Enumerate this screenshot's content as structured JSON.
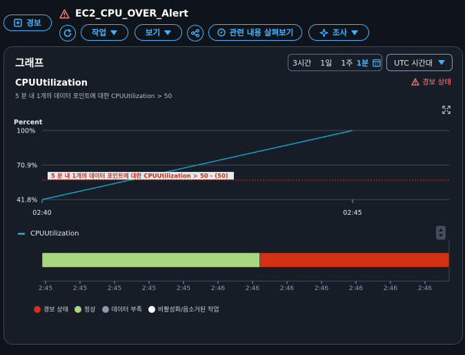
{
  "header": {
    "alarm_button": "경보",
    "alarm_name": "EC2_CPU_OVER_Alert",
    "actions_label": "작업",
    "view_label": "보기",
    "explore_label": "관련 내용 살펴보기",
    "investigate_label": "조사"
  },
  "panel": {
    "title": "그래프",
    "range_options": [
      "3시간",
      "1일",
      "1주",
      "1분"
    ],
    "selected_range": "1분",
    "timezone": "UTC 시간대",
    "chart_title": "CPUUtilization",
    "chart_subtitle": "5 분 내 1개의 데이터 포인트에 대한 CPUUtilization > 50",
    "alarm_state_label": "경보 상태",
    "y_unit": "Percent"
  },
  "chart_data": [
    {
      "type": "line",
      "title": "CPUUtilization",
      "ylabel": "Percent",
      "x": [
        "02:40",
        "02:45"
      ],
      "y_ticks": [
        "41.8%",
        "70.9%",
        "100%"
      ],
      "ylim": [
        41.8,
        100
      ],
      "series": [
        {
          "name": "CPUUtilization",
          "color": "#0ea5c9",
          "points": [
            [
              0,
              41.8
            ],
            [
              1,
              100
            ]
          ]
        }
      ],
      "threshold": {
        "value": 50,
        "label": "5 분 내 1개의 데이터 포인트에 대한 CPUUtilization > 50 - (50)",
        "color": "#d13212"
      },
      "legend": [
        "CPUUtilization"
      ]
    },
    {
      "type": "bar",
      "title": "",
      "x_ticks": [
        "2:45",
        "2:45",
        "2:45",
        "2:45",
        "2:45",
        "2:46",
        "2:46",
        "2:46",
        "2:46",
        "2:46",
        "2:46",
        "2:46"
      ],
      "segments": [
        {
          "state": "정상",
          "fraction": 0.535,
          "color": "#a8d780"
        },
        {
          "state": "경보 상태",
          "fraction": 0.465,
          "color": "#d13212"
        }
      ],
      "legend": [
        {
          "label": "경보 상태",
          "color": "#d13212"
        },
        {
          "label": "정상",
          "color": "#a8d780"
        },
        {
          "label": "데이터 부족",
          "color": "#8d99a8"
        },
        {
          "label": "비활성화/음소거된 작업",
          "color": "#ffffff"
        }
      ]
    }
  ]
}
